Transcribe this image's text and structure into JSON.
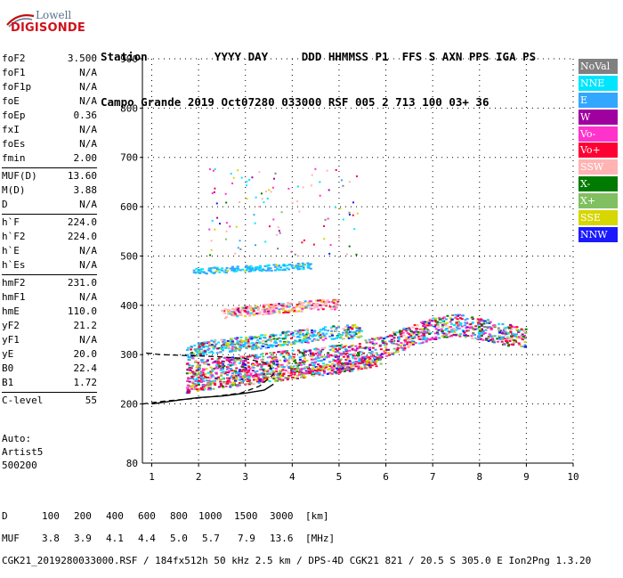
{
  "logo": {
    "line1": "Lowell",
    "line2": "DIGISONDE"
  },
  "header": {
    "labels": [
      "Station",
      "YYYY",
      "DAY",
      "DDD",
      "HHMMSS",
      "P1",
      "FFS",
      "S",
      "AXN",
      "PPS",
      "IGA",
      "PS"
    ],
    "values": [
      "Campo Grande",
      "2019",
      "Oct07",
      "280",
      "033000",
      "RSF",
      "005",
      "2",
      "713",
      "100",
      "03+",
      "36"
    ]
  },
  "params": {
    "group1": [
      {
        "label": "foF2",
        "value": "3.500"
      },
      {
        "label": "foF1",
        "value": "N/A"
      },
      {
        "label": "foF1p",
        "value": "N/A"
      },
      {
        "label": "foE",
        "value": "N/A"
      },
      {
        "label": "foEp",
        "value": "0.36"
      },
      {
        "label": "fxI",
        "value": "N/A"
      },
      {
        "label": "foEs",
        "value": "N/A"
      },
      {
        "label": "fmin",
        "value": "2.00"
      }
    ],
    "group2": [
      {
        "label": "MUF(D)",
        "value": "13.60"
      },
      {
        "label": "M(D)",
        "value": "3.88"
      },
      {
        "label": "D",
        "value": "N/A"
      }
    ],
    "group3": [
      {
        "label": "h`F",
        "value": "224.0"
      },
      {
        "label": "h`F2",
        "value": "224.0"
      },
      {
        "label": "h`E",
        "value": "N/A"
      },
      {
        "label": "h`Es",
        "value": "N/A"
      }
    ],
    "group4": [
      {
        "label": "hmF2",
        "value": "231.0"
      },
      {
        "label": "hmF1",
        "value": "N/A"
      },
      {
        "label": "hmE",
        "value": "110.0"
      },
      {
        "label": "yF2",
        "value": "21.2"
      },
      {
        "label": "yF1",
        "value": "N/A"
      },
      {
        "label": "yE",
        "value": "20.0"
      },
      {
        "label": "B0",
        "value": "22.4"
      },
      {
        "label": "B1",
        "value": "1.72"
      }
    ],
    "group5": [
      {
        "label": "C-level",
        "value": "55"
      }
    ]
  },
  "auto": {
    "line1": "Auto:",
    "line2": "Artist5",
    "line3": "500200"
  },
  "legend": [
    {
      "label": "NoVal",
      "color": "#808080"
    },
    {
      "label": "NNE",
      "color": "#00e5ff"
    },
    {
      "label": "E",
      "color": "#33a6ff"
    },
    {
      "label": "W",
      "color": "#a000a0"
    },
    {
      "label": "Vo-",
      "color": "#ff33cc"
    },
    {
      "label": "Vo+",
      "color": "#ff0033"
    },
    {
      "label": "SSW",
      "color": "#ffb3b3"
    },
    {
      "label": "X-",
      "color": "#007a00"
    },
    {
      "label": "X+",
      "color": "#80c060"
    },
    {
      "label": "SSE",
      "color": "#d6d600"
    },
    {
      "label": "NNW",
      "color": "#1a1aff"
    }
  ],
  "bottom": {
    "row_d_label": "D",
    "row_d_values": [
      "100",
      "200",
      "400",
      "600",
      "800",
      "1000",
      "1500",
      "3000",
      "[km]"
    ],
    "row_muf_label": "MUF",
    "row_muf_values": [
      "3.8",
      "3.9",
      "4.1",
      "4.4",
      "5.0",
      "5.7",
      "7.9",
      "13.6",
      "[MHz]"
    ],
    "footer": "CGK21_2019280033000.RSF / 184fx512h 50 kHz 2.5 km / DPS-4D CGK21 821 / 20.5 S 305.0 E Ion2Png 1.3.20"
  },
  "chart_data": {
    "type": "scatter",
    "title": "",
    "xlabel": "",
    "ylabel": "",
    "xlim": [
      0.8,
      10
    ],
    "ylim": [
      80,
      900
    ],
    "x_ticks": [
      1,
      2,
      3,
      4,
      5,
      6,
      7,
      8,
      9,
      10
    ],
    "y_ticks": [
      200,
      300,
      400,
      500,
      600,
      700,
      800,
      900
    ],
    "y_tick_labels": [
      "200",
      "300",
      "400",
      "500",
      "600",
      "700",
      "800",
      "900"
    ],
    "y_bottom_label": "80",
    "traces": [
      {
        "name": "O-trace lower",
        "x": [
          1.75,
          2.0,
          2.5,
          3.0,
          3.5,
          4.0,
          4.5,
          5.0,
          5.5,
          5.9
        ],
        "y": [
          232,
          236,
          242,
          248,
          254,
          260,
          266,
          272,
          280,
          288
        ]
      },
      {
        "name": "O-trace main",
        "x": [
          1.75,
          2.0,
          2.5,
          3.0,
          3.5,
          4.0,
          4.5,
          5.0,
          5.5,
          6.0,
          6.5,
          7.0,
          7.5,
          8.0,
          8.5,
          9.0
        ],
        "y": [
          262,
          268,
          272,
          276,
          282,
          288,
          292,
          298,
          305,
          318,
          335,
          352,
          360,
          352,
          342,
          332
        ]
      },
      {
        "name": "spread band",
        "x": [
          1.75,
          2.0,
          2.5,
          3.0,
          3.5,
          4.0,
          4.5,
          5.0,
          5.5
        ],
        "y": [
          300,
          310,
          318,
          322,
          328,
          335,
          340,
          345,
          348
        ]
      },
      {
        "name": "second hop",
        "x": [
          2.5,
          3.0,
          3.5,
          4.0,
          4.5,
          5.0
        ],
        "y": [
          382,
          388,
          392,
          396,
          400,
          402
        ]
      },
      {
        "name": "third hop",
        "x": [
          1.9,
          2.5,
          3.0,
          3.5,
          4.0,
          4.4
        ],
        "y": [
          468,
          472,
          474,
          476,
          478,
          480
        ]
      }
    ],
    "profile": {
      "solid": {
        "x": [
          1.0,
          1.6,
          2.0,
          2.5,
          3.0,
          3.4,
          3.6
        ],
        "y": [
          200,
          208,
          213,
          216,
          222,
          228,
          240
        ]
      },
      "dashed": {
        "x": [
          0.8,
          1.3,
          1.8,
          2.3,
          2.9,
          3.3,
          3.6,
          3.5,
          3.0,
          2.4,
          1.8,
          1.2,
          0.8
        ],
        "y": [
          200,
          206,
          210,
          215,
          222,
          236,
          260,
          282,
          292,
          296,
          298,
          300,
          304
        ]
      }
    }
  }
}
